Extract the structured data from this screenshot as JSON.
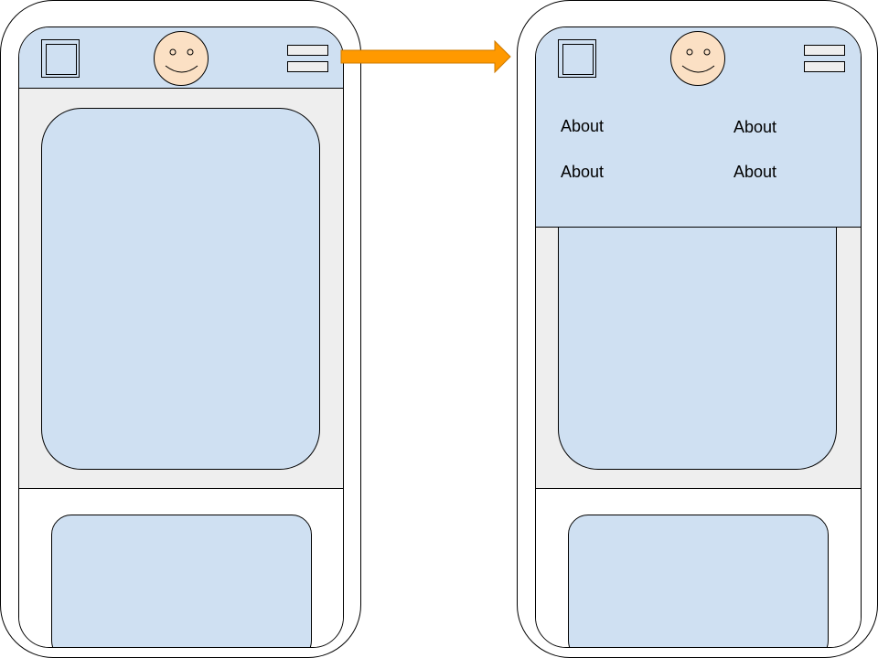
{
  "colors": {
    "panel": "#cfe0f2",
    "background": "#eeeeee",
    "face": "#fbe0c4",
    "arrow": "#ff9900",
    "arrow_stroke": "#cc7a00"
  },
  "icons": {
    "logo": "logo-icon",
    "avatar": "smiley-face-icon",
    "menu": "hamburger-menu-icon",
    "arrow": "arrow-right-icon"
  },
  "expanded_menu": {
    "links": [
      {
        "label": "About"
      },
      {
        "label": "About"
      },
      {
        "label": "About"
      },
      {
        "label": "About"
      }
    ]
  }
}
